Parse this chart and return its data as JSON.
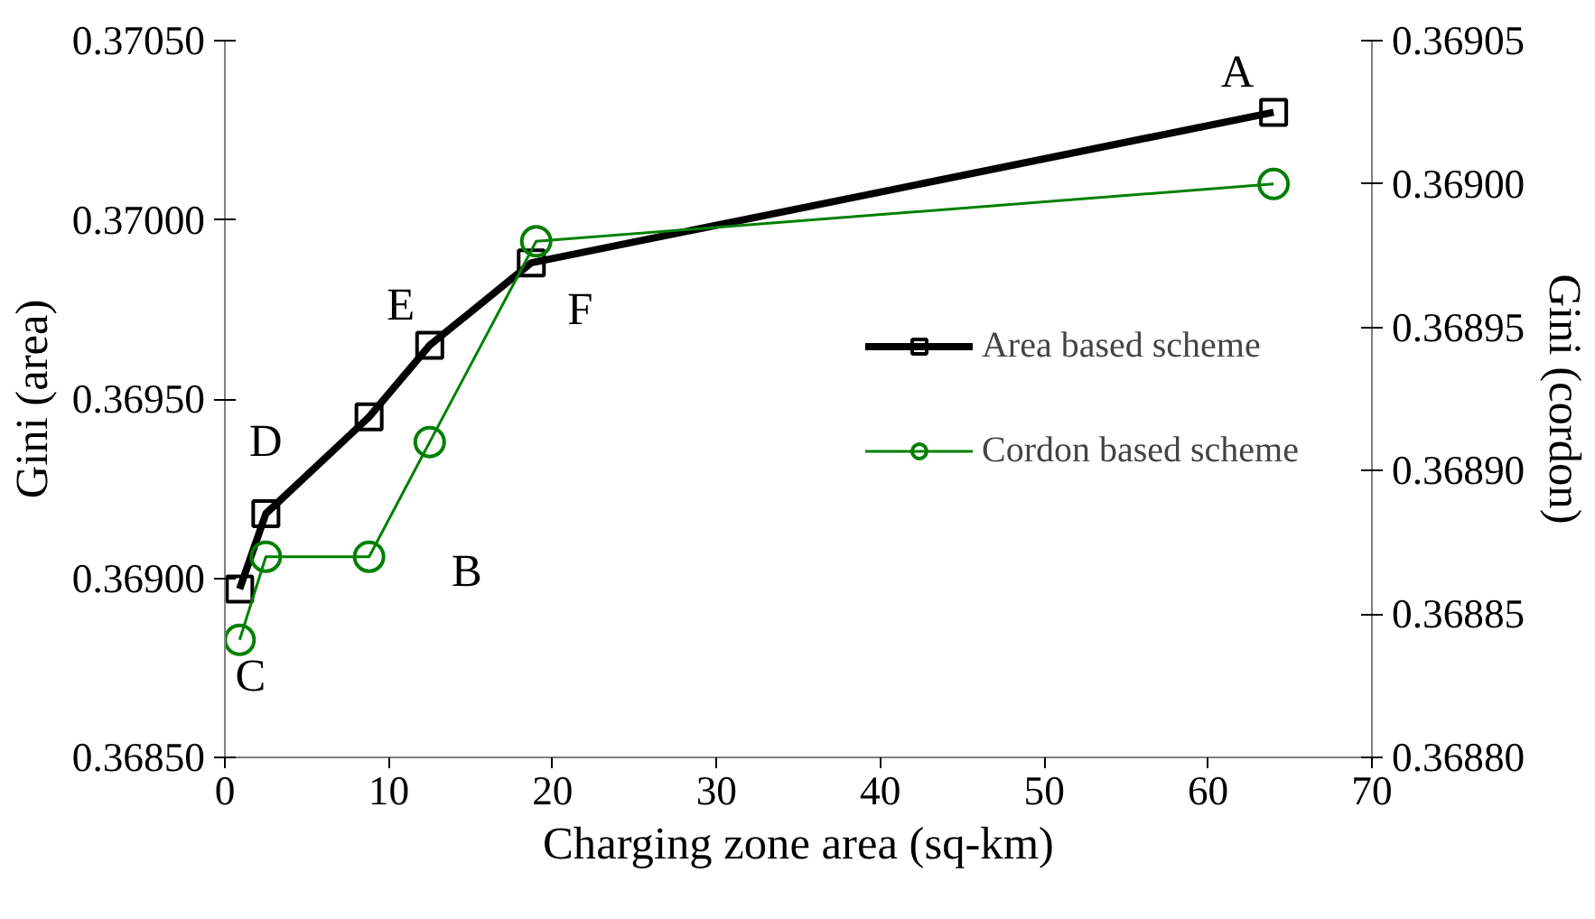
{
  "chart_data": {
    "type": "line",
    "xlabel": "Charging zone area (sq-km)",
    "ylabel": "Gini (area)",
    "y2label": "Gini (cordon)",
    "xlim": [
      0,
      70
    ],
    "xticks": [
      0,
      10,
      20,
      30,
      40,
      50,
      60,
      70
    ],
    "ylim": [
      0.3685,
      0.3705
    ],
    "yticks": [
      {
        "value": 0.3685,
        "label": "0.36850"
      },
      {
        "value": 0.369,
        "label": "0.36900"
      },
      {
        "value": 0.3695,
        "label": "0.36950"
      },
      {
        "value": 0.37,
        "label": "0.37000"
      },
      {
        "value": 0.3705,
        "label": "0.37050"
      }
    ],
    "y2lim": [
      0.3688,
      0.36905
    ],
    "y2ticks": [
      {
        "value": 0.3688,
        "label": "0.36880"
      },
      {
        "value": 0.36885,
        "label": "0.36885"
      },
      {
        "value": 0.3689,
        "label": "0.36890"
      },
      {
        "value": 0.36895,
        "label": "0.36895"
      },
      {
        "value": 0.369,
        "label": "0.36900"
      },
      {
        "value": 0.36905,
        "label": "0.36905"
      }
    ],
    "grid": false,
    "legend": "right",
    "series": [
      {
        "name": "Area based scheme",
        "color": "#000000",
        "marker": "square",
        "x": [
          0.9,
          2.5,
          8.8,
          12.5,
          18.7,
          64
        ],
        "values": [
          0.36897,
          0.36918,
          0.36945,
          0.36965,
          0.36988,
          0.3703
        ]
      },
      {
        "name": "Cordon based scheme",
        "color": "#008000",
        "marker": "circle",
        "axis": "y2",
        "x": [
          0.9,
          2.5,
          8.8,
          12.5,
          19,
          64
        ],
        "values": [
          0.368841,
          0.36887,
          0.36887,
          0.36891,
          0.36898,
          0.369
        ]
      }
    ],
    "annotations": [
      {
        "text": "A",
        "x": 64,
        "y": 0.3703
      },
      "B",
      {
        "text": "C",
        "x": 0.9,
        "y": 0.368841
      },
      {
        "text": "D",
        "x": 2.5,
        "y": 0.36918
      },
      {
        "text": "E",
        "x": 12.5,
        "y": 0.36965
      },
      {
        "text": "F",
        "x": 18.7,
        "y": 0.36988
      }
    ]
  }
}
